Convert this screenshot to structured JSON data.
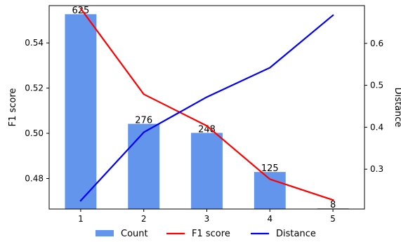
{
  "chart_data": {
    "type": "bar",
    "x": [
      1,
      2,
      3,
      4,
      5
    ],
    "bars": {
      "name": "Count",
      "axis": "y_left",
      "heights_in_f1_units": [
        0.5527,
        0.5042,
        0.5002,
        0.4829,
        0.4668
      ],
      "labels": [
        "625",
        "276",
        "248",
        "125",
        "8"
      ],
      "color": "#6495ED"
    },
    "series": [
      {
        "name": "F1 score",
        "type": "line",
        "axis": "y_left",
        "color": "#ff0000",
        "values": [
          0.5552,
          0.5173,
          0.5033,
          0.4797,
          0.4705
        ]
      },
      {
        "name": "Distance",
        "type": "line",
        "axis": "y_right",
        "color": "#0000ff",
        "values": [
          0.225,
          0.388,
          0.472,
          0.542,
          0.667
        ]
      }
    ],
    "y_left": {
      "label": "F1 score",
      "ylim": [
        0.4665,
        0.5565
      ],
      "ticks": [
        0.48,
        0.5,
        0.52,
        0.54
      ],
      "tick_labels": [
        "0.48",
        "0.50",
        "0.52",
        "0.54"
      ]
    },
    "y_right": {
      "label": "Distance",
      "ylim": [
        0.205,
        0.69
      ],
      "ticks": [
        0.3,
        0.4,
        0.5,
        0.6
      ],
      "tick_labels": [
        "0.3",
        "0.4",
        "0.5",
        "0.6"
      ]
    },
    "x_axis": {
      "ticks": [
        1,
        2,
        3,
        4,
        5
      ],
      "tick_labels": [
        "1",
        "2",
        "3",
        "4",
        "5"
      ],
      "xlim": [
        0.5,
        5.5
      ]
    },
    "legend": {
      "placement": "bottom",
      "entries": [
        {
          "label": "Count",
          "kind": "patch",
          "color": "#6495ED"
        },
        {
          "label": "F1 score",
          "kind": "line",
          "color": "#ff0000"
        },
        {
          "label": "Distance",
          "kind": "line",
          "color": "#0000ff"
        }
      ]
    },
    "grid": false
  }
}
